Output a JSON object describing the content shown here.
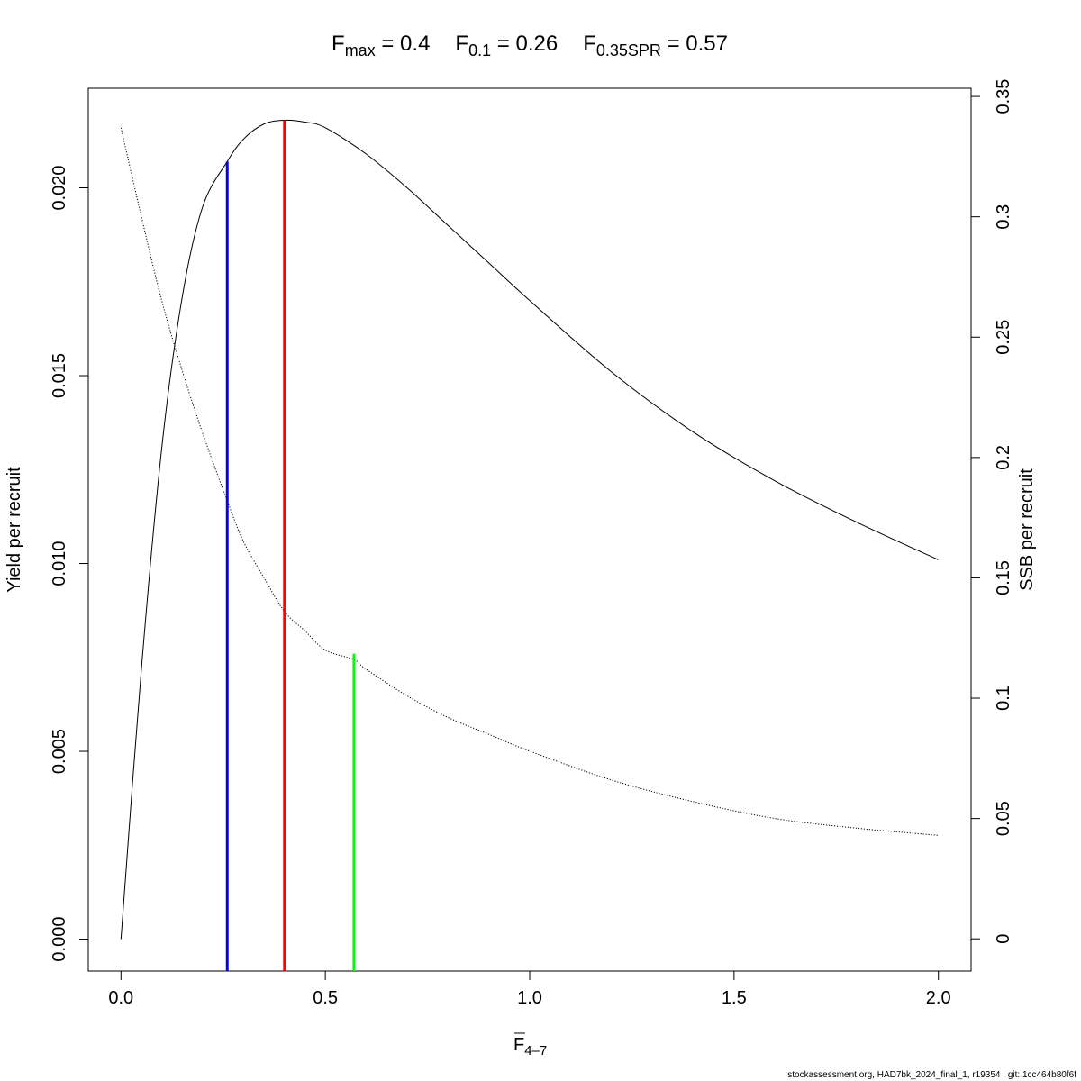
{
  "chart_data": {
    "type": "line",
    "title": {
      "parts": [
        {
          "label": "F",
          "sub": "max",
          "value": "0.4"
        },
        {
          "label": "F",
          "sub": "0.1",
          "value": "0.26"
        },
        {
          "label": "F",
          "sub": "0.35SPR",
          "value": "0.57"
        }
      ]
    },
    "xlabel": {
      "base": "F",
      "sub": "4–7"
    },
    "ylabel": "Yield per recruit",
    "y2label": "SSB per recruit",
    "xlim": [
      -0.08,
      2.08
    ],
    "ylim": [
      -0.00085,
      0.02265
    ],
    "y2lim": [
      -0.0134,
      0.3534
    ],
    "xticks": [
      "0.0",
      "0.5",
      "1.0",
      "1.5",
      "2.0"
    ],
    "yticks": [
      "0.000",
      "0.005",
      "0.010",
      "0.015",
      "0.020"
    ],
    "y2ticks": [
      "0",
      "0.05",
      "0.1",
      "0.15",
      "0.2",
      "0.25",
      "0.3",
      "0.35"
    ],
    "series": [
      {
        "axis": "left",
        "style": "solid",
        "color": "#000000",
        "x": [
          0,
          0.05,
          0.1,
          0.15,
          0.2,
          0.26,
          0.3,
          0.35,
          0.4,
          0.45,
          0.5,
          0.6,
          0.7,
          0.8,
          0.9,
          1.0,
          1.2,
          1.4,
          1.6,
          1.8,
          2.0
        ],
        "y": [
          0,
          0.0072,
          0.0131,
          0.0171,
          0.0195,
          0.0207,
          0.0213,
          0.0217,
          0.0218,
          0.02175,
          0.0216,
          0.0209,
          0.02,
          0.019,
          0.018,
          0.017,
          0.0151,
          0.0135,
          0.0122,
          0.0111,
          0.0101
        ]
      },
      {
        "axis": "right",
        "style": "dotted",
        "color": "#000000",
        "x": [
          0,
          0.05,
          0.1,
          0.15,
          0.2,
          0.26,
          0.3,
          0.35,
          0.4,
          0.45,
          0.5,
          0.57,
          0.6,
          0.7,
          0.8,
          0.9,
          1.0,
          1.2,
          1.4,
          1.6,
          1.8,
          2.0
        ],
        "y": [
          0.337,
          0.3,
          0.265,
          0.236,
          0.21,
          0.182,
          0.165,
          0.15,
          0.136,
          0.128,
          0.12,
          0.116,
          0.112,
          0.101,
          0.092,
          0.085,
          0.078,
          0.066,
          0.057,
          0.05,
          0.046,
          0.043
        ]
      }
    ],
    "reference_lines": [
      {
        "name": "F0.1",
        "x": 0.26,
        "y_end": 0.0207,
        "color": "#0000ff"
      },
      {
        "name": "Fmax",
        "x": 0.4,
        "y_end": 0.0218,
        "color": "#ff0000"
      },
      {
        "name": "F0.35SPR",
        "x": 0.57,
        "y_end": 0.0076,
        "color": "#00ff00"
      }
    ],
    "footer": "stockassessment.org, HAD7bk_2024_final_1, r19354 , git: 1cc464b80f6f"
  }
}
